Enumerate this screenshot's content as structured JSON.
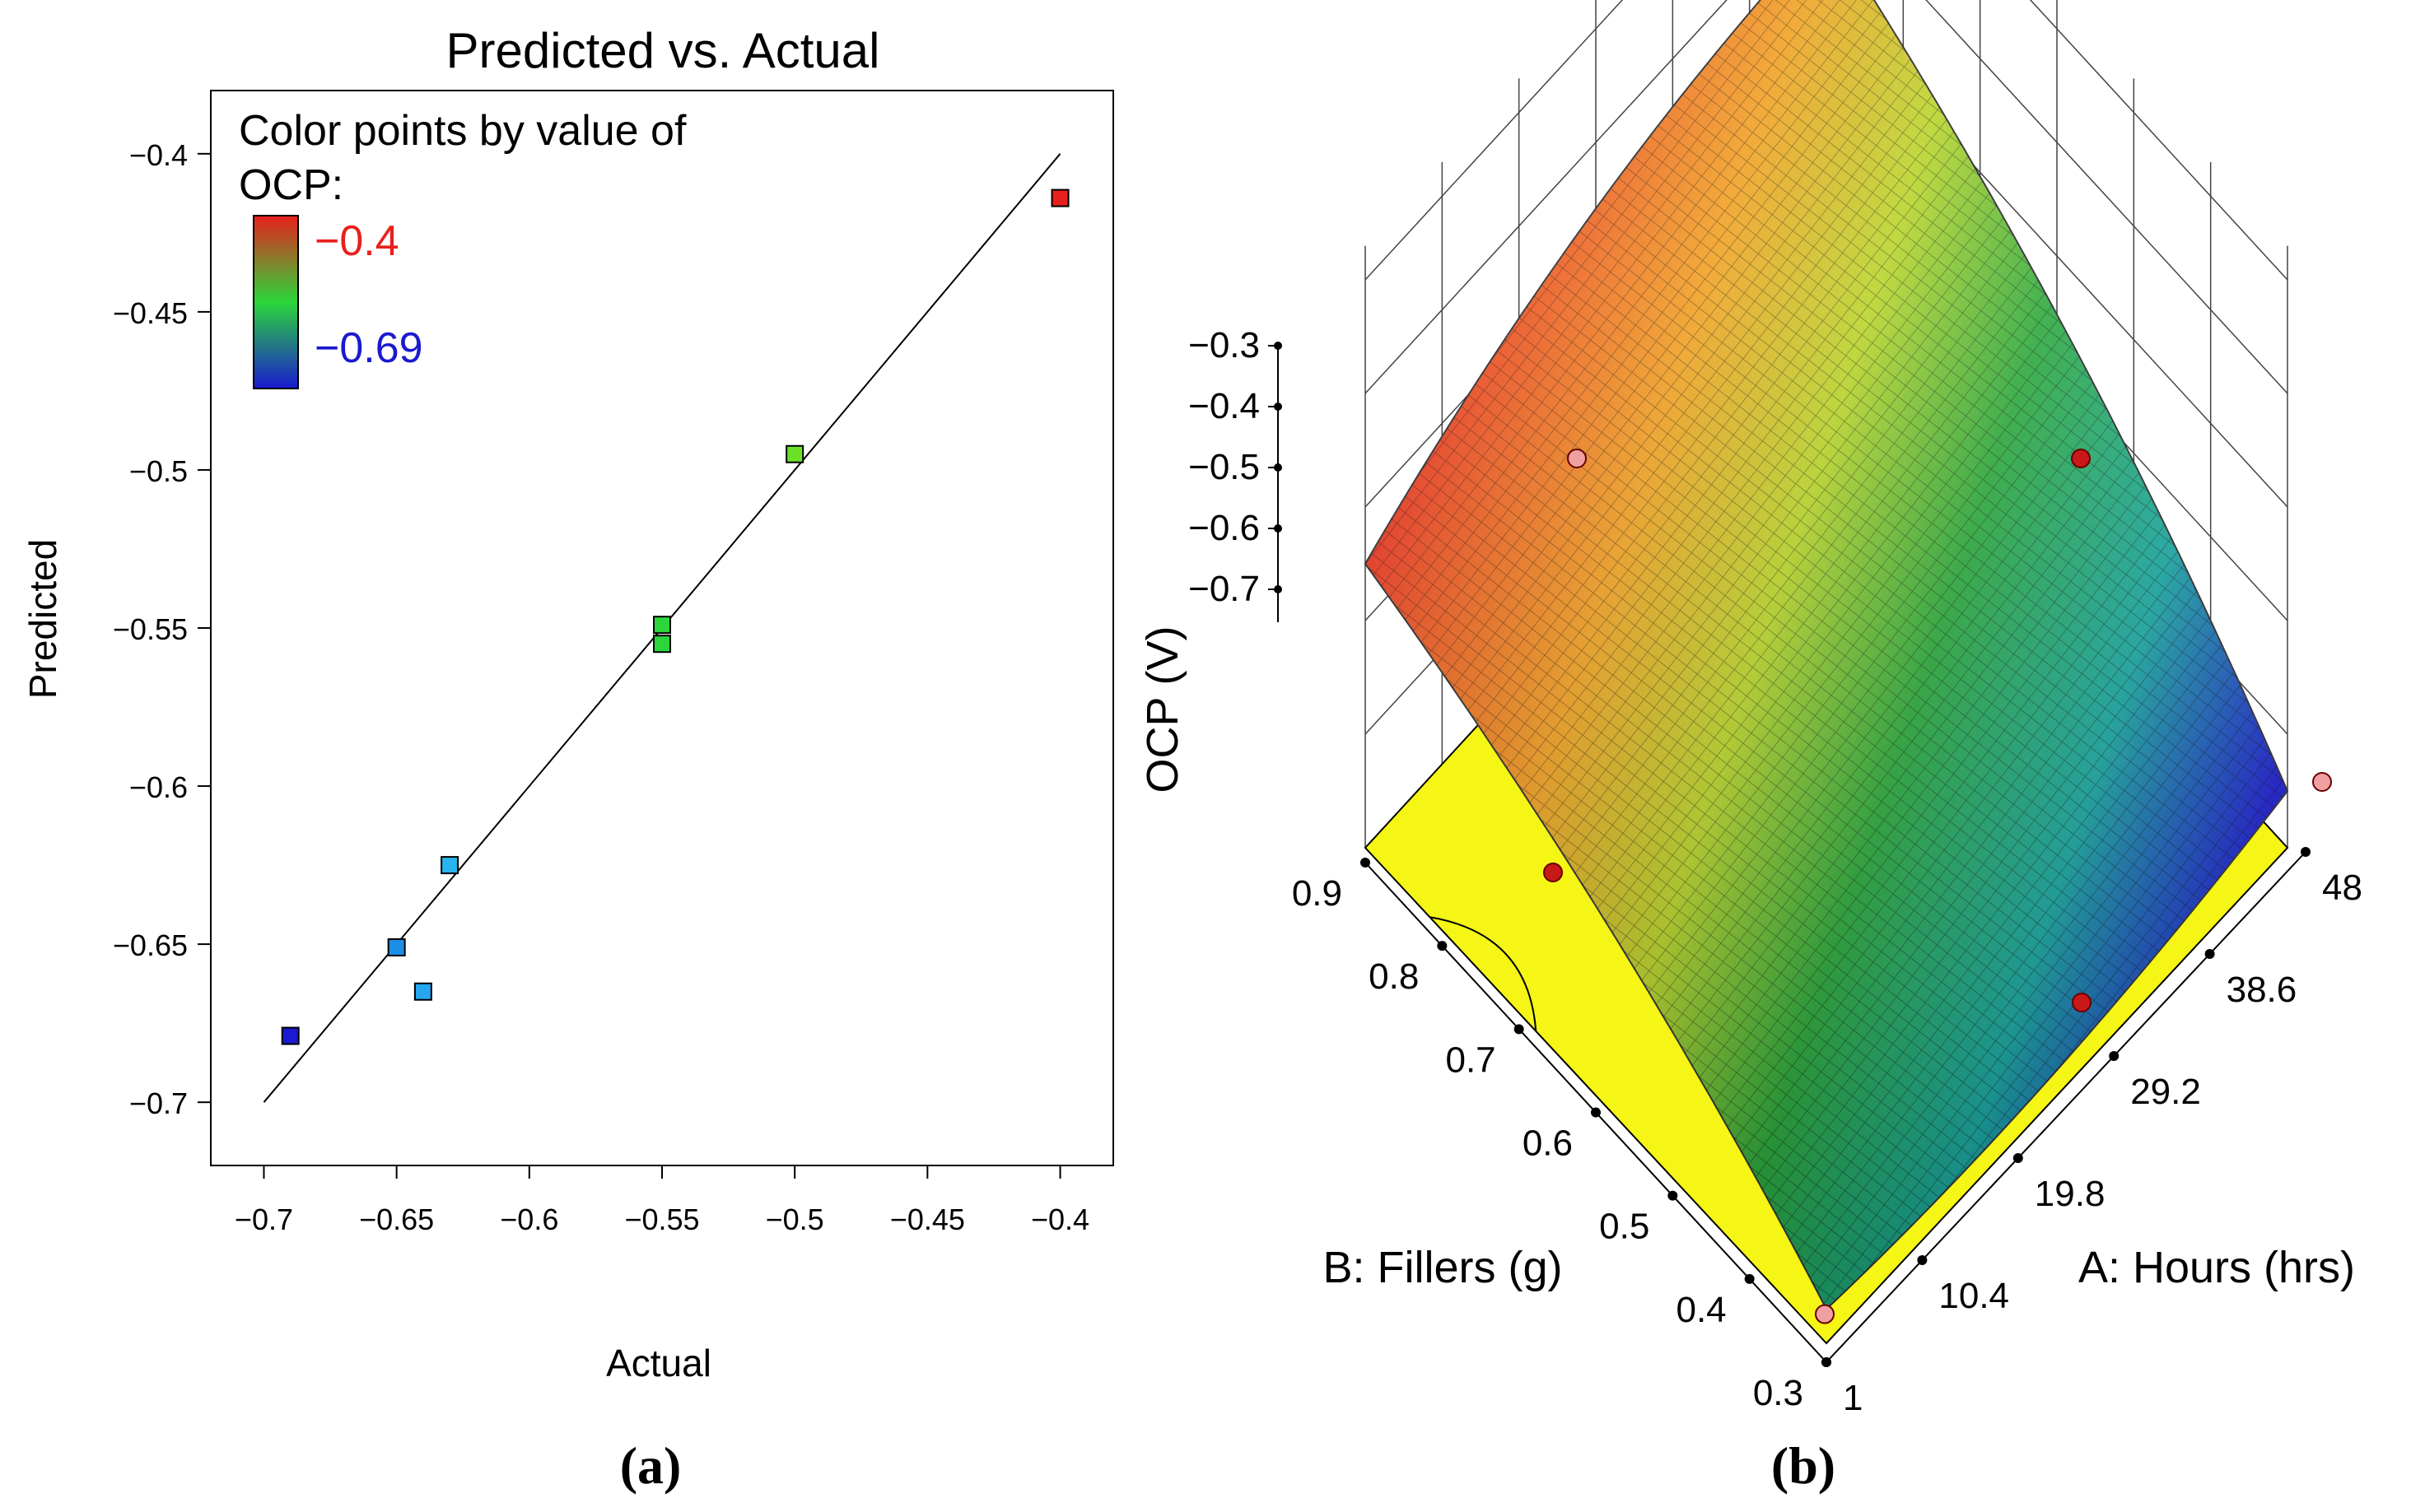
{
  "chart_data": [
    {
      "type": "scatter",
      "panel_label": "(a)",
      "title": "Predicted vs. Actual",
      "xlabel": "Actual",
      "ylabel": "Predicted",
      "xlim": [
        -0.72,
        -0.38
      ],
      "ylim": [
        -0.72,
        -0.38
      ],
      "xticks": [
        "-0.7",
        "-0.65",
        "-0.6",
        "-0.55",
        "-0.5",
        "-0.45",
        "-0.4"
      ],
      "yticks": [
        "-0.4",
        "-0.45",
        "-0.5",
        "-0.55",
        "-0.6",
        "-0.65",
        "-0.7"
      ],
      "legend": {
        "title_line1": "Color points by value of",
        "title_line2": "OCP:",
        "max_label": "-0.4",
        "min_label": "-0.69",
        "max_color": "#e8201c",
        "min_color": "#1a1ad0"
      },
      "reference_line": {
        "from": [
          -0.7,
          -0.7
        ],
        "to": [
          -0.4,
          -0.4
        ]
      },
      "points": [
        {
          "actual": -0.4,
          "predicted": -0.414,
          "color": "#e8201c"
        },
        {
          "actual": -0.5,
          "predicted": -0.495,
          "color": "#6be228"
        },
        {
          "actual": -0.55,
          "predicted": -0.549,
          "color": "#2bd63a"
        },
        {
          "actual": -0.55,
          "predicted": -0.555,
          "color": "#2bd63a"
        },
        {
          "actual": -0.63,
          "predicted": -0.625,
          "color": "#2ab4ee"
        },
        {
          "actual": -0.65,
          "predicted": -0.651,
          "color": "#1d8ee6"
        },
        {
          "actual": -0.64,
          "predicted": -0.665,
          "color": "#26a6ee"
        },
        {
          "actual": -0.69,
          "predicted": -0.679,
          "color": "#1a1ad0"
        }
      ]
    },
    {
      "type": "surface3d",
      "panel_label": "(b)",
      "zlabel": "OCP (V)",
      "xlabel": "A: Hours (hrs)",
      "ylabel": "B: Fillers (g)",
      "zticks": [
        "-0.3",
        "-0.4",
        "-0.5",
        "-0.6",
        "-0.7"
      ],
      "xticks": [
        "1",
        "10.4",
        "19.8",
        "29.2",
        "38.6",
        "48"
      ],
      "yticks": [
        "0.3",
        "0.4",
        "0.5",
        "0.6",
        "0.7",
        "0.8",
        "0.9"
      ],
      "zlim": [
        -0.75,
        -0.3
      ],
      "corner_values": {
        "front_hours1_fill0.3": -0.72,
        "left_hours1_fill0.9": -0.5,
        "back_hours48_fill0.9": -0.38,
        "right_hours48_fill0.3": -0.7
      },
      "colors": {
        "floor": "#f5f516",
        "high": "#e8201c",
        "low": "#1a1ad0"
      }
    }
  ]
}
